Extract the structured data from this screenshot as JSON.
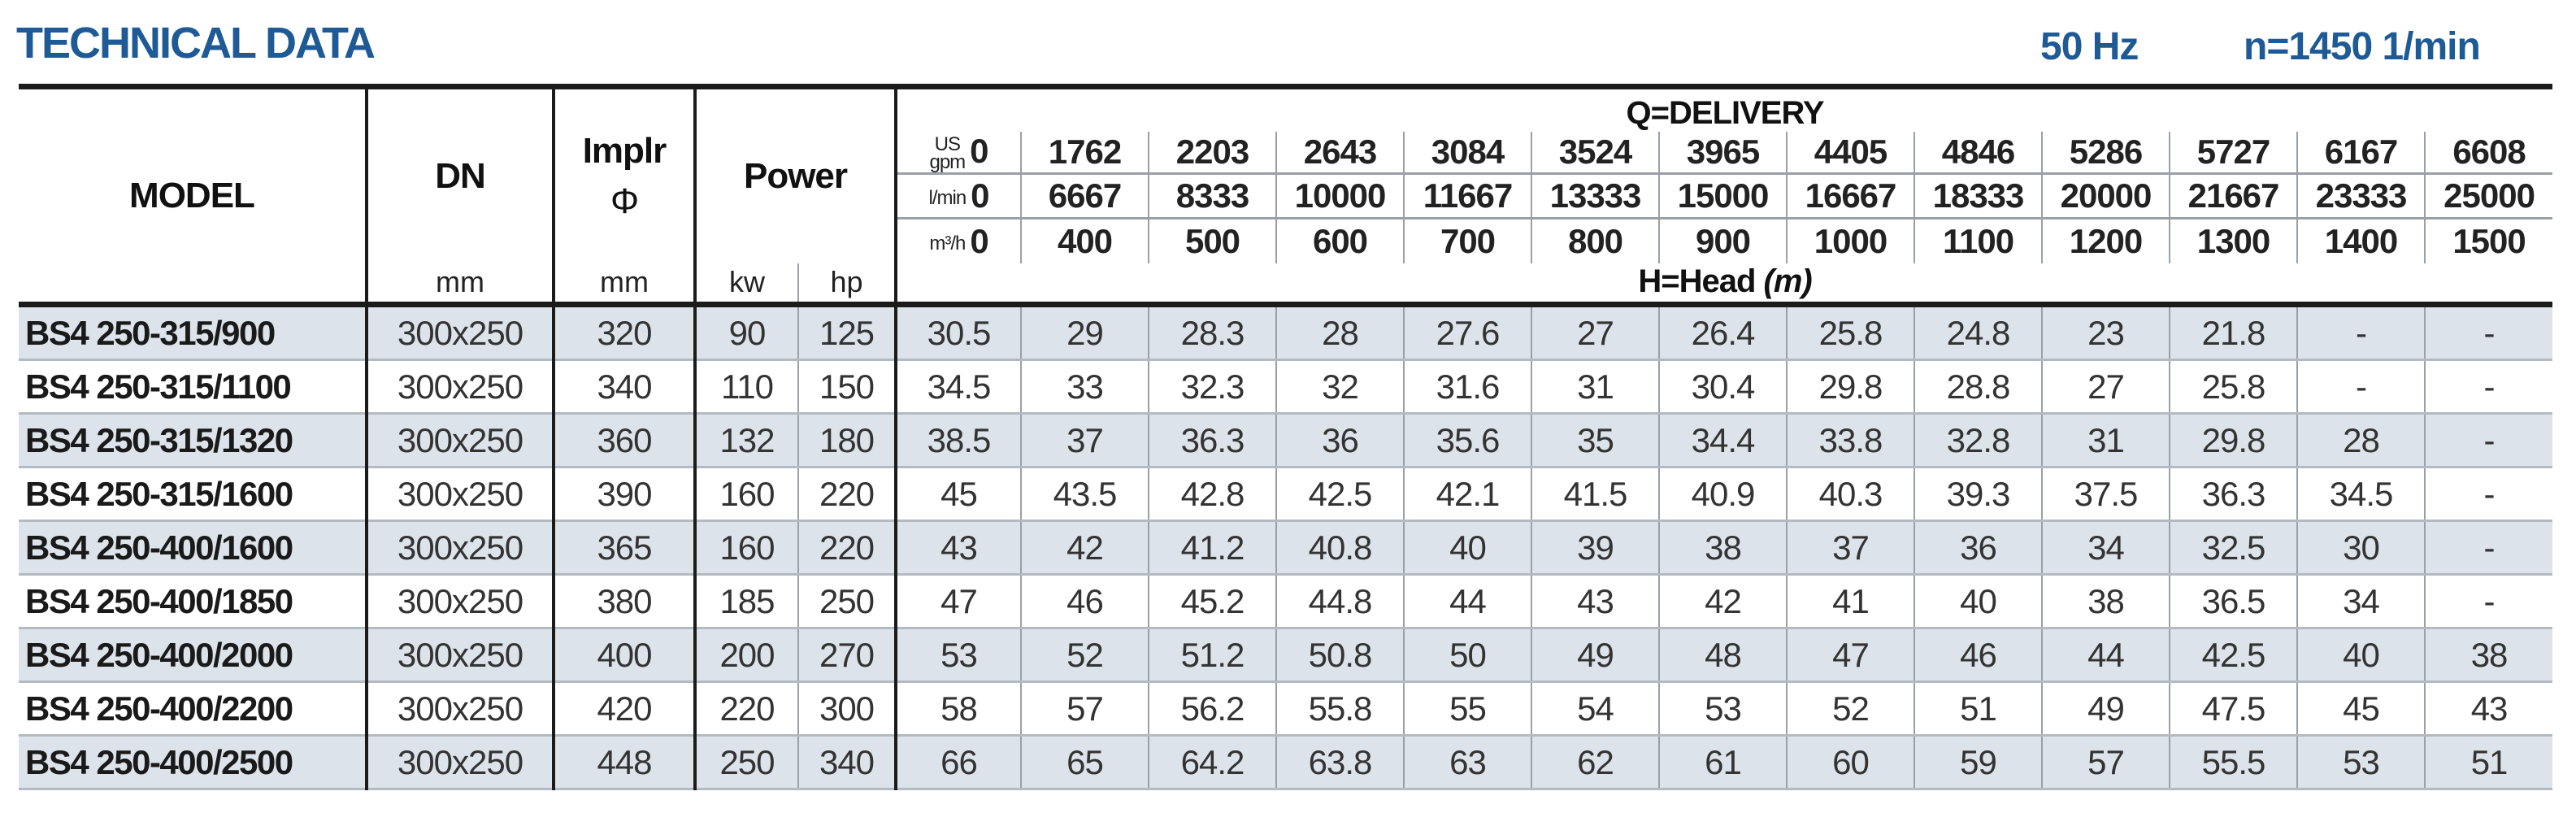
{
  "header": {
    "title": "TECHNICAL DATA",
    "frequency": "50 Hz",
    "speed": "n=1450 1/min",
    "accent_color": "#1d5a96"
  },
  "columns": {
    "model": "MODEL",
    "dn": "DN",
    "dn_unit": "mm",
    "impeller": "Implr",
    "impeller_symbol": "Φ",
    "impeller_unit": "mm",
    "power": "Power",
    "kw": "kw",
    "hp": "hp",
    "delivery": "Q=DELIVERY",
    "head": "H=Head",
    "head_unit": "(m)"
  },
  "flow_rows": [
    {
      "unit_top": "US",
      "unit": "gpm",
      "values": [
        "0",
        "1762",
        "2203",
        "2643",
        "3084",
        "3524",
        "3965",
        "4405",
        "4846",
        "5286",
        "5727",
        "6167",
        "6608"
      ]
    },
    {
      "unit_top": "",
      "unit": "l/min",
      "values": [
        "0",
        "6667",
        "8333",
        "10000",
        "11667",
        "13333",
        "15000",
        "16667",
        "18333",
        "20000",
        "21667",
        "23333",
        "25000"
      ]
    },
    {
      "unit_top": "",
      "unit": "m³/h",
      "values": [
        "0",
        "400",
        "500",
        "600",
        "700",
        "800",
        "900",
        "1000",
        "1100",
        "1200",
        "1300",
        "1400",
        "1500"
      ]
    }
  ],
  "rows": [
    {
      "model": "BS4 250-315/900",
      "dn": "300x250",
      "impeller": "320",
      "kw": "90",
      "hp": "125",
      "heads": [
        "30.5",
        "29",
        "28.3",
        "28",
        "27.6",
        "27",
        "26.4",
        "25.8",
        "24.8",
        "23",
        "21.8",
        "-",
        "-"
      ]
    },
    {
      "model": "BS4 250-315/1100",
      "dn": "300x250",
      "impeller": "340",
      "kw": "110",
      "hp": "150",
      "heads": [
        "34.5",
        "33",
        "32.3",
        "32",
        "31.6",
        "31",
        "30.4",
        "29.8",
        "28.8",
        "27",
        "25.8",
        "-",
        "-"
      ]
    },
    {
      "model": "BS4 250-315/1320",
      "dn": "300x250",
      "impeller": "360",
      "kw": "132",
      "hp": "180",
      "heads": [
        "38.5",
        "37",
        "36.3",
        "36",
        "35.6",
        "35",
        "34.4",
        "33.8",
        "32.8",
        "31",
        "29.8",
        "28",
        "-"
      ]
    },
    {
      "model": "BS4 250-315/1600",
      "dn": "300x250",
      "impeller": "390",
      "kw": "160",
      "hp": "220",
      "heads": [
        "45",
        "43.5",
        "42.8",
        "42.5",
        "42.1",
        "41.5",
        "40.9",
        "40.3",
        "39.3",
        "37.5",
        "36.3",
        "34.5",
        "-"
      ]
    },
    {
      "model": "BS4 250-400/1600",
      "dn": "300x250",
      "impeller": "365",
      "kw": "160",
      "hp": "220",
      "heads": [
        "43",
        "42",
        "41.2",
        "40.8",
        "40",
        "39",
        "38",
        "37",
        "36",
        "34",
        "32.5",
        "30",
        "-"
      ]
    },
    {
      "model": "BS4 250-400/1850",
      "dn": "300x250",
      "impeller": "380",
      "kw": "185",
      "hp": "250",
      "heads": [
        "47",
        "46",
        "45.2",
        "44.8",
        "44",
        "43",
        "42",
        "41",
        "40",
        "38",
        "36.5",
        "34",
        "-"
      ]
    },
    {
      "model": "BS4 250-400/2000",
      "dn": "300x250",
      "impeller": "400",
      "kw": "200",
      "hp": "270",
      "heads": [
        "53",
        "52",
        "51.2",
        "50.8",
        "50",
        "49",
        "48",
        "47",
        "46",
        "44",
        "42.5",
        "40",
        "38"
      ]
    },
    {
      "model": "BS4 250-400/2200",
      "dn": "300x250",
      "impeller": "420",
      "kw": "220",
      "hp": "300",
      "heads": [
        "58",
        "57",
        "56.2",
        "55.8",
        "55",
        "54",
        "53",
        "52",
        "51",
        "49",
        "47.5",
        "45",
        "43"
      ]
    },
    {
      "model": "BS4 250-400/2500",
      "dn": "300x250",
      "impeller": "448",
      "kw": "250",
      "hp": "340",
      "heads": [
        "66",
        "65",
        "64.2",
        "63.8",
        "63",
        "62",
        "61",
        "60",
        "59",
        "57",
        "55.5",
        "53",
        "51"
      ]
    }
  ]
}
